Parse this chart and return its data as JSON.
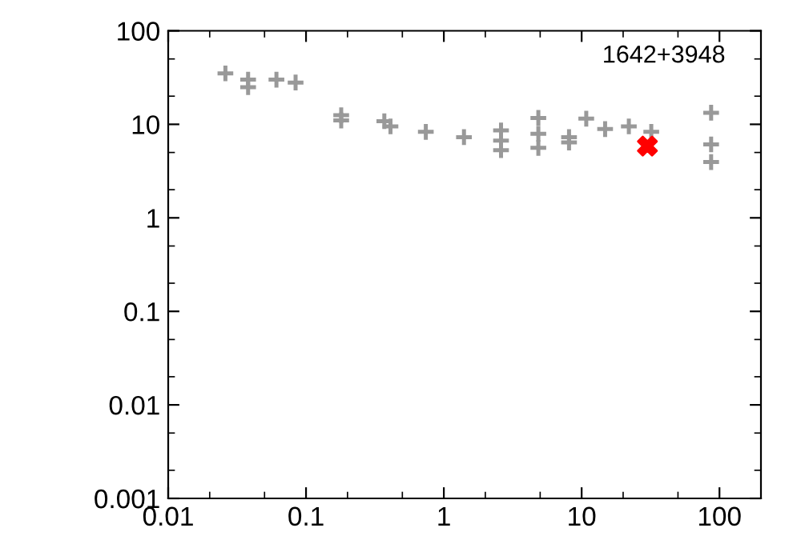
{
  "chart_data": {
    "type": "scatter",
    "log": "xy",
    "xlim": [
      0.01,
      200
    ],
    "ylim": [
      0.001,
      100
    ],
    "xticks": [
      0.01,
      0.1,
      1,
      10,
      100
    ],
    "yticks": [
      0.001,
      0.01,
      0.1,
      1,
      10,
      100
    ],
    "grid": false,
    "legend": false,
    "annotations": [
      "1642+3948"
    ],
    "series": [
      {
        "color": "#999999",
        "marker": "cross",
        "x": [
          0.026,
          0.038,
          0.038,
          0.061,
          0.084,
          0.18,
          0.18,
          0.37,
          0.41,
          0.74,
          1.4,
          2.6,
          2.6,
          2.6,
          4.85,
          4.85,
          4.85,
          8.1,
          8.1,
          10.8,
          14.8,
          22,
          32,
          87,
          87,
          87
        ],
        "values": [
          35,
          30,
          25,
          30,
          28,
          12.5,
          11,
          10.8,
          9.5,
          8.3,
          7.3,
          8.6,
          6.7,
          5.3,
          11.7,
          7.9,
          5.6,
          7.3,
          6.4,
          11.5,
          8.9,
          9.5,
          8.3,
          13.3,
          6.1,
          3.95
        ]
      },
      {
        "color": "#ff0000",
        "marker": "x",
        "x": [
          30
        ],
        "values": [
          5.85
        ]
      }
    ]
  }
}
